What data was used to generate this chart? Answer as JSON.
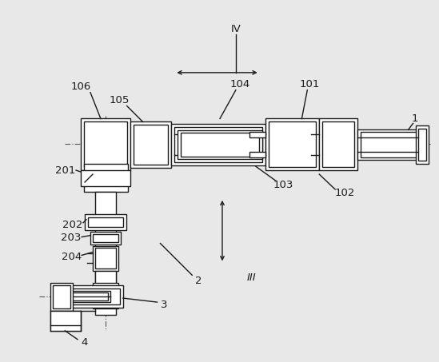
{
  "bg_color": "#e8e8e8",
  "line_color": "#1a1a1a",
  "dash_color": "#666666",
  "lw": 1.0
}
